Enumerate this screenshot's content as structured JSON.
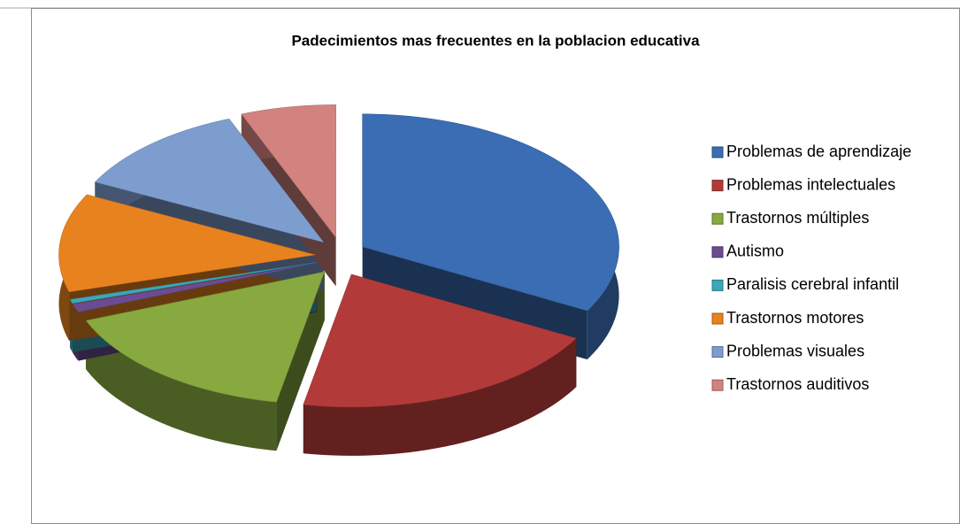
{
  "chart_data": {
    "type": "pie",
    "title": "Padecimientos mas frecuentes en la poblacion educativa",
    "categories": [
      "Problemas de aprendizaje",
      "Problemas intelectuales",
      "Trastornos múltiples",
      "Autismo",
      "Paralisis cerebral infantil",
      "Trastornos motores",
      "Problemas visuales",
      "Trastornos auditivos"
    ],
    "values": [
      33,
      20,
      16,
      1,
      0.5,
      12,
      11.5,
      6
    ],
    "colors": [
      "#3a6db3",
      "#b23b39",
      "#87a93f",
      "#6b4c91",
      "#3ba7bb",
      "#e8821f",
      "#7e9dcf",
      "#d2837f"
    ],
    "legend": "right"
  }
}
